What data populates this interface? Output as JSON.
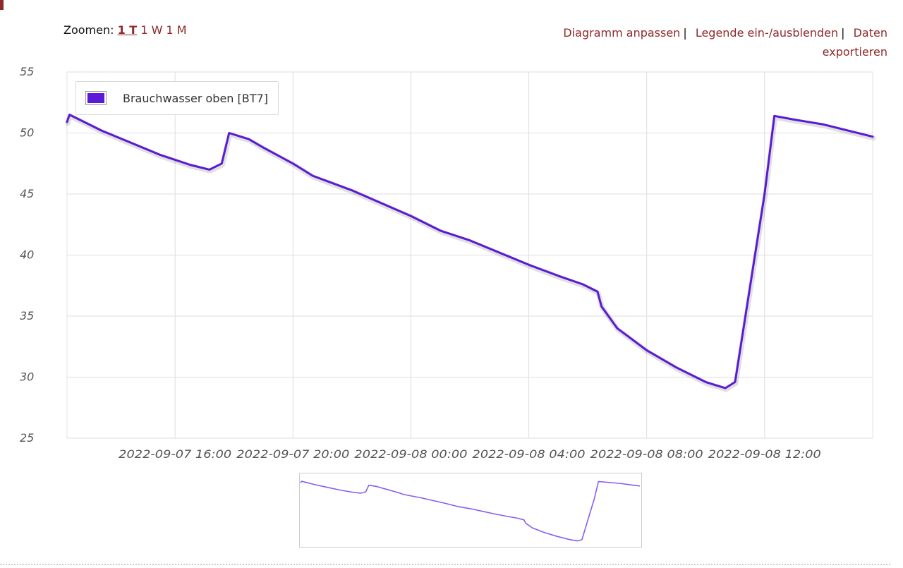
{
  "zoom": {
    "label": "Zoomen:",
    "options": [
      "1 T",
      "1 W",
      "1 M"
    ]
  },
  "actions": {
    "customize": "Diagramm anpassen",
    "toggle_legend": "Legende ein-/ausblenden",
    "export_line1": "Daten",
    "export_line2": "exportieren",
    "separator": "|"
  },
  "colors": {
    "series": "#5b1ad6",
    "link": "#8e2a2a"
  },
  "chart_data": {
    "type": "line",
    "title": "",
    "xlabel": "",
    "ylabel": "",
    "ylim": [
      25,
      55
    ],
    "yticks": [
      55,
      50,
      45,
      40,
      35,
      30,
      25
    ],
    "xlim": [
      "2022-09-07 12:20",
      "2022-09-08 15:40"
    ],
    "xticks": [
      "2022-09-07 16:00",
      "2022-09-07 20:00",
      "2022-09-08 00:00",
      "2022-09-08 04:00",
      "2022-09-08 08:00",
      "2022-09-08 12:00"
    ],
    "grid": true,
    "legend": "top-left",
    "series": [
      {
        "name": "Brauchwasser oben [BT7]",
        "color": "#5b1ad6",
        "points": [
          [
            "2022-09-07 12:20",
            50.9
          ],
          [
            "2022-09-07 12:25",
            51.5
          ],
          [
            "2022-09-07 12:35",
            51.3
          ],
          [
            "2022-09-07 13:30",
            50.2
          ],
          [
            "2022-09-07 14:30",
            49.2
          ],
          [
            "2022-09-07 15:30",
            48.2
          ],
          [
            "2022-09-07 16:30",
            47.4
          ],
          [
            "2022-09-07 17:10",
            47.0
          ],
          [
            "2022-09-07 17:35",
            47.5
          ],
          [
            "2022-09-07 17:50",
            50.0
          ],
          [
            "2022-09-07 18:30",
            49.5
          ],
          [
            "2022-09-07 19:00",
            48.8
          ],
          [
            "2022-09-07 20:00",
            47.5
          ],
          [
            "2022-09-07 20:20",
            47.0
          ],
          [
            "2022-09-07 20:40",
            46.5
          ],
          [
            "2022-09-07 22:00",
            45.3
          ],
          [
            "2022-09-08 00:00",
            43.2
          ],
          [
            "2022-09-08 01:00",
            42.0
          ],
          [
            "2022-09-08 02:00",
            41.2
          ],
          [
            "2022-09-08 03:00",
            40.2
          ],
          [
            "2022-09-08 04:00",
            39.2
          ],
          [
            "2022-09-08 05:00",
            38.3
          ],
          [
            "2022-09-08 05:50",
            37.6
          ],
          [
            "2022-09-08 06:20",
            37.0
          ],
          [
            "2022-09-08 06:28",
            35.8
          ],
          [
            "2022-09-08 07:00",
            34.0
          ],
          [
            "2022-09-08 08:00",
            32.2
          ],
          [
            "2022-09-08 09:00",
            30.8
          ],
          [
            "2022-09-08 10:00",
            29.6
          ],
          [
            "2022-09-08 10:40",
            29.1
          ],
          [
            "2022-09-08 11:00",
            29.6
          ],
          [
            "2022-09-08 12:00",
            45.0
          ],
          [
            "2022-09-08 12:20",
            51.4
          ],
          [
            "2022-09-08 13:00",
            51.1
          ],
          [
            "2022-09-08 14:00",
            50.7
          ],
          [
            "2022-09-08 15:00",
            50.1
          ],
          [
            "2022-09-08 15:40",
            49.7
          ]
        ]
      }
    ]
  }
}
